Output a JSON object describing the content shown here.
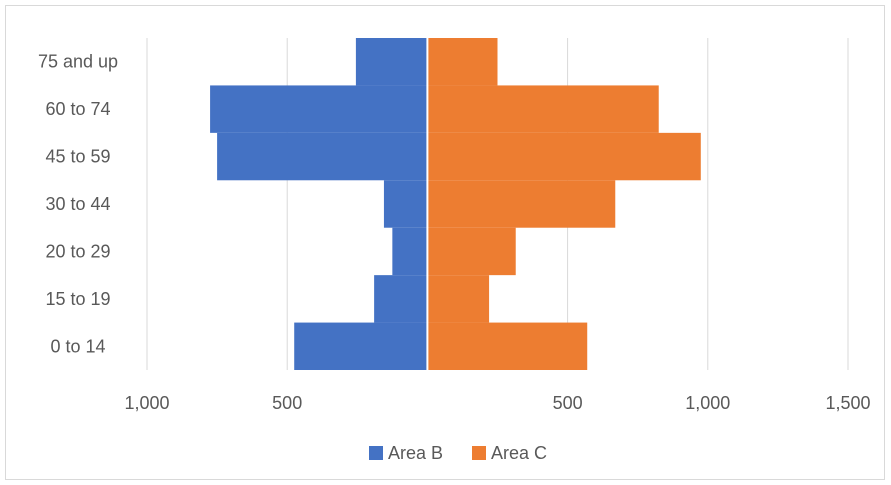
{
  "chart_data": {
    "type": "bar",
    "orientation": "horizontal",
    "stacked": "diverging",
    "categories": [
      "75 and up",
      "60 to 74",
      "45 to 59",
      "30 to 44",
      "20 to 29",
      "15 to 19",
      "0 to 14"
    ],
    "series": [
      {
        "name": "Area B",
        "values": [
          255,
          775,
          750,
          155,
          125,
          190,
          475
        ],
        "color": "#4472C4",
        "side": "left"
      },
      {
        "name": "Area C",
        "values": [
          250,
          825,
          975,
          670,
          315,
          220,
          570
        ],
        "color": "#ED7D31",
        "side": "right"
      }
    ],
    "x_ticks": [
      {
        "value": -1000,
        "label": "1,000"
      },
      {
        "value": -500,
        "label": "500"
      },
      {
        "value": 0,
        "label": ""
      },
      {
        "value": 500,
        "label": "500"
      },
      {
        "value": 1000,
        "label": "1,000"
      },
      {
        "value": 1500,
        "label": "1,500"
      }
    ],
    "xlim": [
      -1000,
      1500
    ],
    "grid": true,
    "legend_position": "bottom",
    "title": "",
    "xlabel": "",
    "ylabel": ""
  }
}
